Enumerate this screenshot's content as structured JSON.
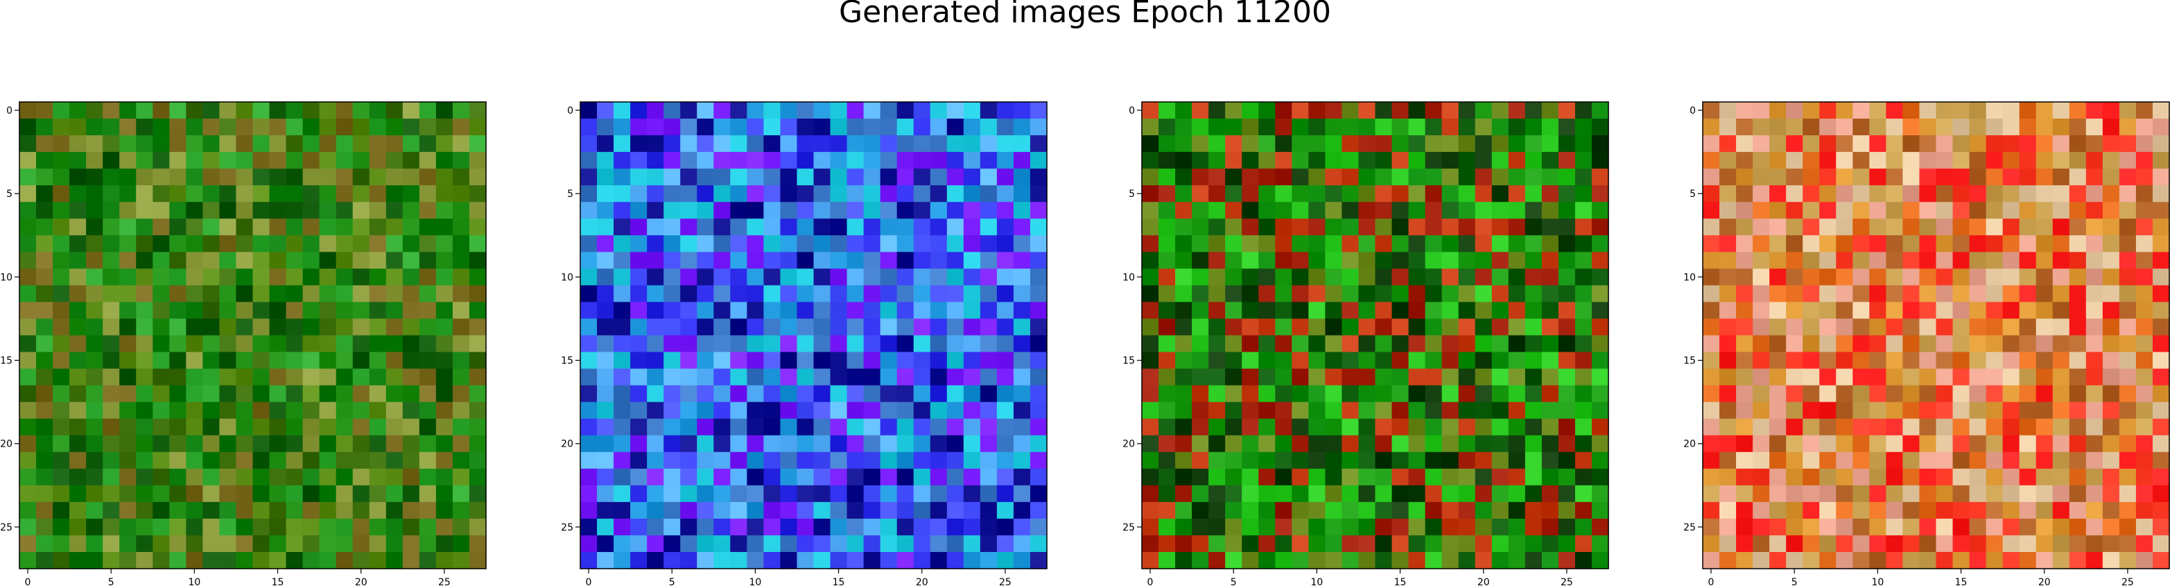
{
  "title": "Generated images Epoch 11200",
  "chart_data": {
    "type": "heatmap",
    "title": "Generated images Epoch 11200",
    "grid": false,
    "images": [
      {
        "shape": [
          28,
          28
        ],
        "dominant_color": "green",
        "palette": [
          "#0a7a0a",
          "#1e8f12",
          "#3c6e0a",
          "#0f5a0a",
          "#5a8c14",
          "#7a6a1e",
          "#2ea82e",
          "#8c9c3c"
        ]
      },
      {
        "shape": [
          28,
          28
        ],
        "dominant_color": "blue-violet",
        "palette": [
          "#2828e6",
          "#4650ff",
          "#1e96dc",
          "#1ec8dc",
          "#7a1eff",
          "#3c78c8",
          "#0a0a8c",
          "#5ab4ff"
        ]
      },
      {
        "shape": [
          28,
          28
        ],
        "dominant_color": "green",
        "palette": [
          "#0a8c0a",
          "#1e9e14",
          "#0a5a0a",
          "#a01e0a",
          "#28c81e",
          "#6e8c1e",
          "#c83c14",
          "#0f3c0a"
        ]
      },
      {
        "shape": [
          28,
          28
        ],
        "dominant_color": "red-orange",
        "palette": [
          "#e66e1e",
          "#ff3c28",
          "#dc9632",
          "#c8a050",
          "#ff1e1e",
          "#e6a08c",
          "#b46428",
          "#e6c8a0"
        ]
      }
    ],
    "xticks": [
      0,
      5,
      10,
      15,
      20,
      25
    ],
    "yticks": [
      0,
      5,
      10,
      15,
      20,
      25
    ],
    "xlim": [
      -0.5,
      27.5
    ],
    "ylim": [
      27.5,
      -0.5
    ]
  }
}
